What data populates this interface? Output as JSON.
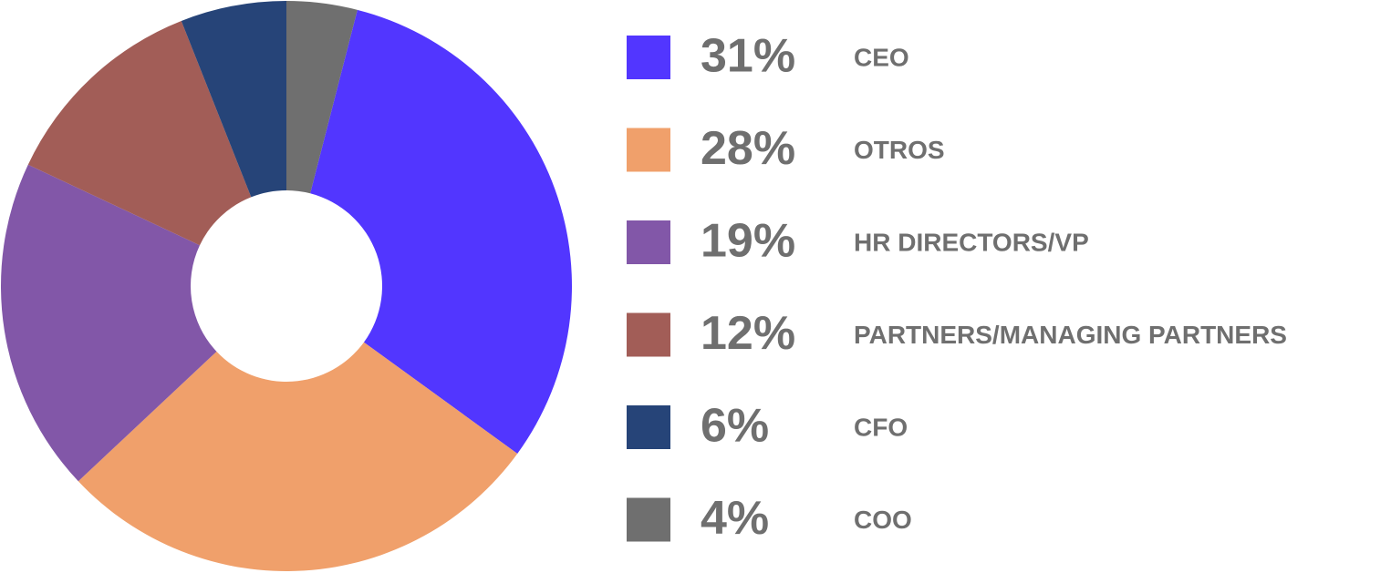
{
  "chart_data": {
    "type": "pie",
    "categories": [
      "CEO",
      "OTROS",
      "HR DIRECTORS/VP",
      "PARTNERS/MANAGING PARTNERS",
      "CFO",
      "COO"
    ],
    "values": [
      31,
      28,
      19,
      12,
      6,
      4
    ],
    "value_labels": [
      "31%",
      "28%",
      "19%",
      "12%",
      "6%",
      "4%"
    ],
    "colors": [
      "#5236ff",
      "#f0a06b",
      "#8257a8",
      "#a25d57",
      "#264478",
      "#6f6f6f"
    ]
  }
}
